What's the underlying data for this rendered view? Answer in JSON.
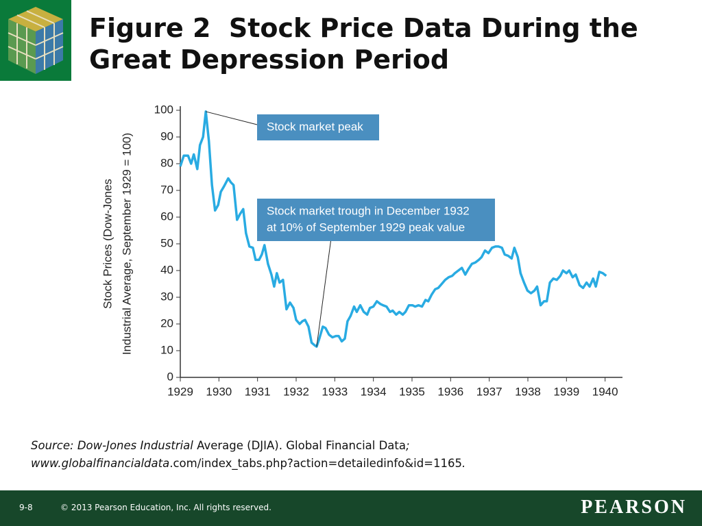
{
  "chart_data": {
    "type": "line",
    "title": "Figure 2  Stock Price Data During the Great Depression Period",
    "y_label": [
      "Stock Prices (Dow-Jones",
      "Industrial Average, September 1929 = 100)"
    ],
    "xlim": [
      1929,
      1940.45
    ],
    "xticks": [
      1929,
      1930,
      1931,
      1932,
      1933,
      1934,
      1935,
      1936,
      1937,
      1938,
      1939,
      1940
    ],
    "ylim": [
      0,
      100
    ],
    "yticks": [
      0,
      10,
      20,
      30,
      40,
      50,
      60,
      70,
      80,
      90,
      100
    ],
    "color": "#29abe2",
    "x": [
      1929.0,
      1929.09,
      1929.2,
      1929.28,
      1929.35,
      1929.44,
      1929.51,
      1929.59,
      1929.66,
      1929.74,
      1929.82,
      1929.9,
      1929.98,
      1930.05,
      1930.13,
      1930.24,
      1930.31,
      1930.38,
      1930.47,
      1930.54,
      1930.63,
      1930.7,
      1930.79,
      1930.88,
      1930.95,
      1931.04,
      1931.11,
      1931.18,
      1931.27,
      1931.36,
      1931.43,
      1931.5,
      1931.57,
      1931.66,
      1931.75,
      1931.84,
      1931.93,
      1932.0,
      1932.09,
      1932.16,
      1932.23,
      1932.32,
      1932.4,
      1932.48,
      1932.53,
      1932.6,
      1932.69,
      1932.76,
      1932.85,
      1932.94,
      1933.03,
      1933.1,
      1933.18,
      1933.26,
      1933.33,
      1933.41,
      1933.5,
      1933.57,
      1933.66,
      1933.75,
      1933.84,
      1933.91,
      1934.0,
      1934.09,
      1934.18,
      1934.25,
      1934.34,
      1934.43,
      1934.5,
      1934.59,
      1934.67,
      1934.76,
      1934.83,
      1934.92,
      1935.01,
      1935.08,
      1935.17,
      1935.26,
      1935.35,
      1935.42,
      1935.51,
      1935.6,
      1935.68,
      1935.77,
      1935.86,
      1935.95,
      1936.04,
      1936.11,
      1936.2,
      1936.29,
      1936.38,
      1936.46,
      1936.55,
      1936.64,
      1936.73,
      1936.8,
      1936.89,
      1936.98,
      1937.07,
      1937.16,
      1937.24,
      1937.33,
      1937.4,
      1937.49,
      1937.58,
      1937.65,
      1937.74,
      1937.81,
      1937.9,
      1937.99,
      1938.08,
      1938.17,
      1938.24,
      1938.33,
      1938.42,
      1938.49,
      1938.57,
      1938.66,
      1938.75,
      1938.84,
      1938.91,
      1939.0,
      1939.07,
      1939.16,
      1939.24,
      1939.34,
      1939.43,
      1939.52,
      1939.6,
      1939.69,
      1939.76,
      1939.85,
      1939.94,
      1940.03
    ],
    "values": [
      79,
      83,
      83,
      80,
      83.5,
      78,
      87,
      90,
      99.5,
      88.5,
      72,
      62.5,
      64.5,
      69.5,
      71.5,
      74.5,
      73,
      72,
      59,
      61,
      63,
      54,
      49,
      48.5,
      44,
      44,
      46,
      49.5,
      42.5,
      38.5,
      34,
      39,
      35.5,
      36.5,
      25.5,
      28,
      26,
      21.5,
      20,
      21,
      21.5,
      19,
      13,
      12,
      11.5,
      14.5,
      19,
      18.5,
      16,
      15,
      15.5,
      15.5,
      13.5,
      14.5,
      21,
      23,
      26.5,
      24.5,
      27,
      24.5,
      23.5,
      26,
      26.5,
      28.5,
      27.5,
      27,
      26.5,
      24.5,
      25,
      23.5,
      24.5,
      23.5,
      24.5,
      27,
      27,
      26.5,
      27,
      26.5,
      29,
      28.5,
      31,
      33,
      33.5,
      35,
      36.5,
      37.5,
      38,
      39,
      40,
      41,
      38.5,
      40.5,
      42.5,
      43,
      44,
      45,
      47.5,
      46.5,
      48.5,
      49,
      49,
      48.5,
      46,
      45.5,
      44.5,
      48.5,
      45,
      39,
      35.5,
      32.5,
      31.5,
      32.5,
      34,
      27,
      28.5,
      28.5,
      35.5,
      37,
      36.5,
      38,
      40,
      39,
      40,
      37.5,
      38.5,
      34.5,
      33.5,
      35.5,
      34,
      37,
      34,
      39.5,
      39,
      38
    ],
    "annotations": [
      {
        "lines": [
          "Stock market peak"
        ]
      },
      {
        "lines": [
          "Stock market trough in December 1932",
          "at 10% of September 1929 peak value"
        ]
      }
    ]
  },
  "source": {
    "lines": [
      [
        {
          "text": "Source: Dow-Jones Industrial",
          "italic": true
        },
        {
          "text": " Average (DJIA). Global Financial Data",
          "italic": false
        },
        {
          "text": ";",
          "italic": true
        }
      ],
      [
        {
          "text": "www.globalfinancialdata",
          "italic": true
        },
        {
          "text": ".com/index_tabs.php?action=detailedinfo&id=1165",
          "italic": false
        },
        {
          "text": ".",
          "italic": true
        }
      ]
    ]
  },
  "footer": {
    "page": "9-8",
    "copyright": "© 2013 Pearson Education, Inc. All rights reserved.",
    "brand": "PEARSON"
  }
}
